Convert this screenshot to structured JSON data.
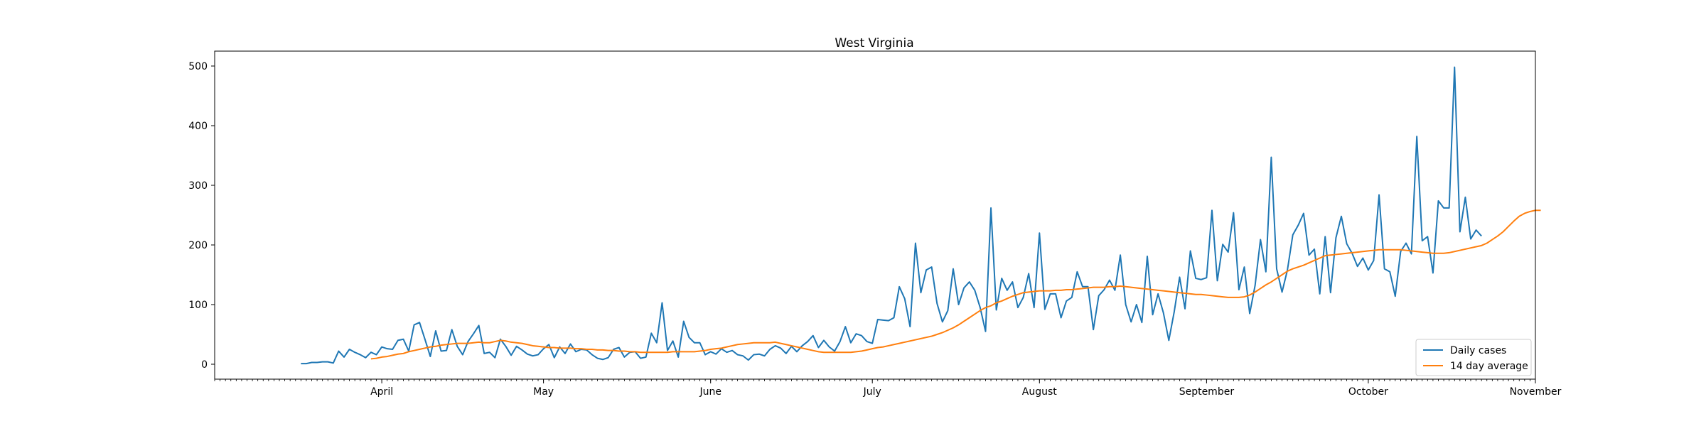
{
  "chart_data": {
    "type": "line",
    "title": "West Virginia",
    "xlabel": "",
    "ylabel": "",
    "x_start": "2020-03-17",
    "x_ticks": [
      {
        "label": "April",
        "date": "2020-04-01"
      },
      {
        "label": "May",
        "date": "2020-05-01"
      },
      {
        "label": "June",
        "date": "2020-06-01"
      },
      {
        "label": "July",
        "date": "2020-07-01"
      },
      {
        "label": "August",
        "date": "2020-08-01"
      },
      {
        "label": "September",
        "date": "2020-09-01"
      },
      {
        "label": "October",
        "date": "2020-10-01"
      },
      {
        "label": "November",
        "date": "2020-11-01"
      }
    ],
    "y_ticks": [
      0,
      100,
      200,
      300,
      400,
      500
    ],
    "xlim": [
      "2020-03-01",
      "2020-11-01"
    ],
    "ylim": [
      -25,
      525
    ],
    "minor_ticks": "daily",
    "grid": false,
    "legend_position": "lower right",
    "series": [
      {
        "name": "Daily cases",
        "color": "#1f77b4",
        "values": [
          1,
          1,
          3,
          3,
          4,
          4,
          2,
          22,
          12,
          25,
          20,
          16,
          11,
          20,
          16,
          29,
          26,
          25,
          40,
          42,
          22,
          66,
          70,
          42,
          13,
          56,
          22,
          23,
          58,
          30,
          16,
          38,
          51,
          65,
          18,
          20,
          11,
          42,
          30,
          15,
          30,
          24,
          17,
          14,
          16,
          26,
          33,
          11,
          29,
          18,
          34,
          21,
          25,
          24,
          16,
          10,
          8,
          11,
          25,
          28,
          12,
          20,
          21,
          10,
          12,
          52,
          36,
          103,
          23,
          39,
          12,
          72,
          45,
          36,
          36,
          16,
          21,
          17,
          26,
          20,
          23,
          16,
          14,
          7,
          16,
          17,
          14,
          25,
          31,
          27,
          18,
          30,
          21,
          31,
          38,
          48,
          28,
          40,
          29,
          22,
          38,
          63,
          36,
          51,
          48,
          38,
          35,
          75,
          74,
          73,
          78,
          130,
          110,
          63,
          203,
          120,
          158,
          163,
          102,
          71,
          90,
          160,
          100,
          128,
          138,
          124,
          95,
          55,
          262,
          91,
          144,
          124,
          138,
          95,
          112,
          152,
          95,
          220,
          92,
          118,
          118,
          78,
          106,
          112,
          155,
          130,
          130,
          58,
          115,
          125,
          141,
          124,
          183,
          100,
          71,
          100,
          70,
          181,
          83,
          118,
          86,
          40,
          88,
          146,
          93,
          190,
          144,
          142,
          145,
          258,
          140,
          201,
          188,
          254,
          125,
          163,
          85,
          132,
          209,
          155,
          347,
          160,
          121,
          158,
          217,
          233,
          253,
          183,
          193,
          118,
          214,
          120,
          212,
          248,
          202,
          186,
          164,
          178,
          158,
          174,
          284,
          160,
          155,
          114,
          189,
          203,
          185,
          382,
          207,
          214,
          153,
          274,
          262,
          262,
          498,
          222,
          280,
          210,
          225,
          215
        ]
      },
      {
        "name": "14 day average",
        "color": "#ff7f0e",
        "start_index": 13,
        "values": [
          9,
          10,
          12,
          13,
          15,
          17,
          18,
          21,
          23,
          25,
          27,
          29,
          30,
          32,
          33,
          34,
          35,
          35,
          35,
          36,
          37,
          36,
          36,
          38,
          40,
          39,
          37,
          36,
          35,
          33,
          31,
          30,
          29,
          28,
          28,
          27,
          27,
          27,
          26,
          26,
          25,
          25,
          24,
          24,
          23,
          23,
          22,
          22,
          21,
          21,
          20,
          20,
          20,
          20,
          20,
          20,
          21,
          21,
          21,
          21,
          21,
          22,
          23,
          25,
          26,
          27,
          29,
          31,
          33,
          34,
          35,
          36,
          36,
          36,
          36,
          37,
          35,
          33,
          31,
          29,
          27,
          25,
          23,
          21,
          20,
          20,
          20,
          20,
          20,
          20,
          21,
          22,
          24,
          26,
          28,
          29,
          31,
          33,
          35,
          37,
          39,
          41,
          43,
          45,
          47,
          50,
          53,
          57,
          61,
          66,
          72,
          78,
          84,
          90,
          95,
          98,
          103,
          106,
          110,
          114,
          117,
          120,
          121,
          122,
          123,
          123,
          123,
          124,
          124,
          125,
          125,
          126,
          127,
          128,
          129,
          129,
          129,
          130,
          130,
          131,
          130,
          129,
          128,
          127,
          126,
          125,
          124,
          123,
          122,
          121,
          120,
          119,
          118,
          117,
          117,
          116,
          115,
          114,
          113,
          112,
          112,
          112,
          113,
          116,
          121,
          127,
          133,
          138,
          144,
          150,
          156,
          160,
          163,
          166,
          170,
          174,
          178,
          182,
          183,
          184,
          185,
          186,
          187,
          188,
          189,
          190,
          191,
          192,
          192,
          192,
          192,
          192,
          191,
          190,
          189,
          188,
          187,
          186,
          186,
          186,
          187,
          189,
          191,
          193,
          195,
          197,
          199,
          203,
          209,
          215,
          222,
          231,
          240,
          248,
          253,
          256,
          258,
          258
        ]
      }
    ]
  }
}
